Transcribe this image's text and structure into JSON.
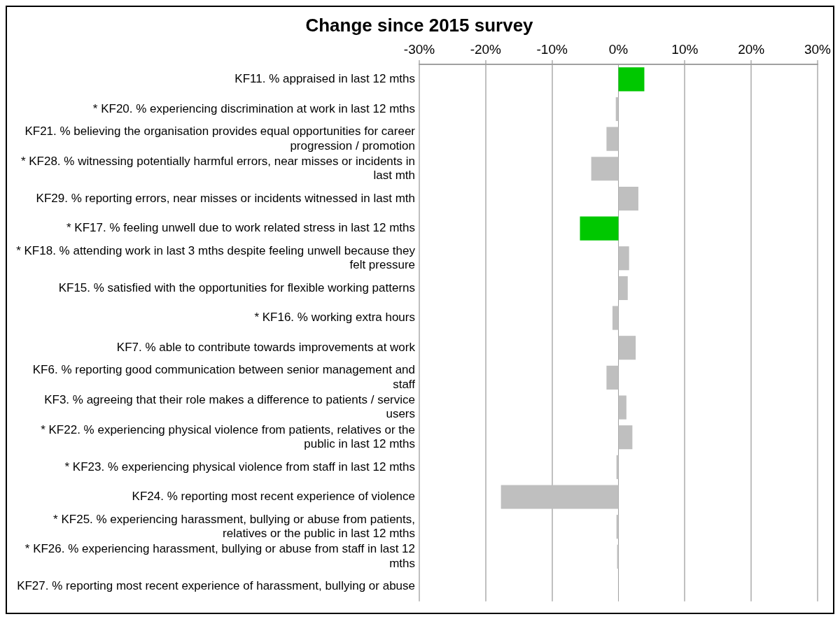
{
  "chart_data": {
    "type": "bar",
    "orientation": "horizontal",
    "title": "Change since 2015 survey",
    "categories": [
      "KF11. % appraised in last 12 mths",
      "* KF20. % experiencing discrimination at work in last 12 mths",
      "KF21. % believing the organisation provides equal opportunities for career progression / promotion",
      "* KF28. % witnessing potentially harmful errors, near misses or incidents in last mth",
      "KF29. % reporting errors, near misses or incidents witnessed in last mth",
      "* KF17. % feeling unwell due to work related stress in last 12 mths",
      "* KF18. % attending work in last 3 mths despite feeling unwell because they felt pressure",
      "KF15. % satisfied with the opportunities for flexible working patterns",
      "* KF16. % working extra hours",
      "KF7. % able to contribute towards improvements at work",
      "KF6. % reporting good communication between senior management and staff",
      "KF3. % agreeing that their role makes a difference to patients / service users",
      "* KF22. % experiencing physical violence from patients, relatives or the public in last 12 mths",
      "* KF23. % experiencing physical violence from staff in last 12 mths",
      "KF24. % reporting most recent experience of violence",
      "* KF25. % experiencing harassment, bullying or abuse from patients, relatives or the public in last 12 mths",
      "* KF26. % experiencing harassment, bullying or abuse from staff in last 12 mths",
      "KF27. % reporting most recent experience of harassment, bullying or abuse"
    ],
    "values": [
      3.9,
      -0.4,
      -1.8,
      -4.1,
      3.0,
      -5.8,
      1.6,
      1.4,
      -0.9,
      2.6,
      -1.8,
      1.2,
      2.1,
      -0.3,
      -17.7,
      -0.3,
      -0.2,
      null
    ],
    "colors": [
      "#00c800",
      "#bfbfbf",
      "#bfbfbf",
      "#bfbfbf",
      "#bfbfbf",
      "#00c800",
      "#bfbfbf",
      "#bfbfbf",
      "#bfbfbf",
      "#bfbfbf",
      "#bfbfbf",
      "#bfbfbf",
      "#bfbfbf",
      "#bfbfbf",
      "#bfbfbf",
      "#bfbfbf",
      "#bfbfbf",
      "#bfbfbf"
    ],
    "xlim": [
      -30,
      30
    ],
    "xticks": [
      {
        "value": -30,
        "label": "-30%"
      },
      {
        "value": -20,
        "label": "-20%"
      },
      {
        "value": -10,
        "label": "-10%"
      },
      {
        "value": 0,
        "label": "0%"
      },
      {
        "value": 10,
        "label": "10%"
      },
      {
        "value": 20,
        "label": "20%"
      },
      {
        "value": 30,
        "label": "30%"
      }
    ],
    "grid": "x",
    "legend": false
  }
}
